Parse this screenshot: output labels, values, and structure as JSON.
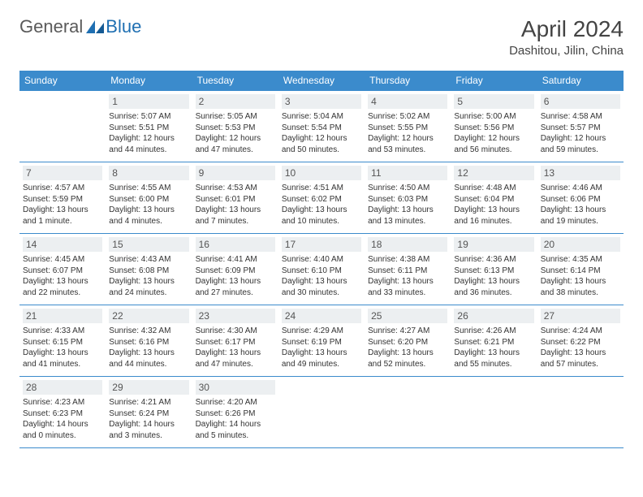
{
  "logo": {
    "general": "General",
    "blue": "Blue"
  },
  "title": "April 2024",
  "location": "Dashitou, Jilin, China",
  "colors": {
    "header_bg": "#3b8bcc",
    "header_text": "#ffffff",
    "daynum_bg": "#eceff1",
    "border": "#3b8bcc",
    "logo_blue": "#1f6fb2",
    "logo_gray": "#5a5a5a"
  },
  "day_headers": [
    "Sunday",
    "Monday",
    "Tuesday",
    "Wednesday",
    "Thursday",
    "Friday",
    "Saturday"
  ],
  "weeks": [
    [
      null,
      {
        "num": "1",
        "sunrise": "Sunrise: 5:07 AM",
        "sunset": "Sunset: 5:51 PM",
        "daylight": "Daylight: 12 hours and 44 minutes."
      },
      {
        "num": "2",
        "sunrise": "Sunrise: 5:05 AM",
        "sunset": "Sunset: 5:53 PM",
        "daylight": "Daylight: 12 hours and 47 minutes."
      },
      {
        "num": "3",
        "sunrise": "Sunrise: 5:04 AM",
        "sunset": "Sunset: 5:54 PM",
        "daylight": "Daylight: 12 hours and 50 minutes."
      },
      {
        "num": "4",
        "sunrise": "Sunrise: 5:02 AM",
        "sunset": "Sunset: 5:55 PM",
        "daylight": "Daylight: 12 hours and 53 minutes."
      },
      {
        "num": "5",
        "sunrise": "Sunrise: 5:00 AM",
        "sunset": "Sunset: 5:56 PM",
        "daylight": "Daylight: 12 hours and 56 minutes."
      },
      {
        "num": "6",
        "sunrise": "Sunrise: 4:58 AM",
        "sunset": "Sunset: 5:57 PM",
        "daylight": "Daylight: 12 hours and 59 minutes."
      }
    ],
    [
      {
        "num": "7",
        "sunrise": "Sunrise: 4:57 AM",
        "sunset": "Sunset: 5:59 PM",
        "daylight": "Daylight: 13 hours and 1 minute."
      },
      {
        "num": "8",
        "sunrise": "Sunrise: 4:55 AM",
        "sunset": "Sunset: 6:00 PM",
        "daylight": "Daylight: 13 hours and 4 minutes."
      },
      {
        "num": "9",
        "sunrise": "Sunrise: 4:53 AM",
        "sunset": "Sunset: 6:01 PM",
        "daylight": "Daylight: 13 hours and 7 minutes."
      },
      {
        "num": "10",
        "sunrise": "Sunrise: 4:51 AM",
        "sunset": "Sunset: 6:02 PM",
        "daylight": "Daylight: 13 hours and 10 minutes."
      },
      {
        "num": "11",
        "sunrise": "Sunrise: 4:50 AM",
        "sunset": "Sunset: 6:03 PM",
        "daylight": "Daylight: 13 hours and 13 minutes."
      },
      {
        "num": "12",
        "sunrise": "Sunrise: 4:48 AM",
        "sunset": "Sunset: 6:04 PM",
        "daylight": "Daylight: 13 hours and 16 minutes."
      },
      {
        "num": "13",
        "sunrise": "Sunrise: 4:46 AM",
        "sunset": "Sunset: 6:06 PM",
        "daylight": "Daylight: 13 hours and 19 minutes."
      }
    ],
    [
      {
        "num": "14",
        "sunrise": "Sunrise: 4:45 AM",
        "sunset": "Sunset: 6:07 PM",
        "daylight": "Daylight: 13 hours and 22 minutes."
      },
      {
        "num": "15",
        "sunrise": "Sunrise: 4:43 AM",
        "sunset": "Sunset: 6:08 PM",
        "daylight": "Daylight: 13 hours and 24 minutes."
      },
      {
        "num": "16",
        "sunrise": "Sunrise: 4:41 AM",
        "sunset": "Sunset: 6:09 PM",
        "daylight": "Daylight: 13 hours and 27 minutes."
      },
      {
        "num": "17",
        "sunrise": "Sunrise: 4:40 AM",
        "sunset": "Sunset: 6:10 PM",
        "daylight": "Daylight: 13 hours and 30 minutes."
      },
      {
        "num": "18",
        "sunrise": "Sunrise: 4:38 AM",
        "sunset": "Sunset: 6:11 PM",
        "daylight": "Daylight: 13 hours and 33 minutes."
      },
      {
        "num": "19",
        "sunrise": "Sunrise: 4:36 AM",
        "sunset": "Sunset: 6:13 PM",
        "daylight": "Daylight: 13 hours and 36 minutes."
      },
      {
        "num": "20",
        "sunrise": "Sunrise: 4:35 AM",
        "sunset": "Sunset: 6:14 PM",
        "daylight": "Daylight: 13 hours and 38 minutes."
      }
    ],
    [
      {
        "num": "21",
        "sunrise": "Sunrise: 4:33 AM",
        "sunset": "Sunset: 6:15 PM",
        "daylight": "Daylight: 13 hours and 41 minutes."
      },
      {
        "num": "22",
        "sunrise": "Sunrise: 4:32 AM",
        "sunset": "Sunset: 6:16 PM",
        "daylight": "Daylight: 13 hours and 44 minutes."
      },
      {
        "num": "23",
        "sunrise": "Sunrise: 4:30 AM",
        "sunset": "Sunset: 6:17 PM",
        "daylight": "Daylight: 13 hours and 47 minutes."
      },
      {
        "num": "24",
        "sunrise": "Sunrise: 4:29 AM",
        "sunset": "Sunset: 6:19 PM",
        "daylight": "Daylight: 13 hours and 49 minutes."
      },
      {
        "num": "25",
        "sunrise": "Sunrise: 4:27 AM",
        "sunset": "Sunset: 6:20 PM",
        "daylight": "Daylight: 13 hours and 52 minutes."
      },
      {
        "num": "26",
        "sunrise": "Sunrise: 4:26 AM",
        "sunset": "Sunset: 6:21 PM",
        "daylight": "Daylight: 13 hours and 55 minutes."
      },
      {
        "num": "27",
        "sunrise": "Sunrise: 4:24 AM",
        "sunset": "Sunset: 6:22 PM",
        "daylight": "Daylight: 13 hours and 57 minutes."
      }
    ],
    [
      {
        "num": "28",
        "sunrise": "Sunrise: 4:23 AM",
        "sunset": "Sunset: 6:23 PM",
        "daylight": "Daylight: 14 hours and 0 minutes."
      },
      {
        "num": "29",
        "sunrise": "Sunrise: 4:21 AM",
        "sunset": "Sunset: 6:24 PM",
        "daylight": "Daylight: 14 hours and 3 minutes."
      },
      {
        "num": "30",
        "sunrise": "Sunrise: 4:20 AM",
        "sunset": "Sunset: 6:26 PM",
        "daylight": "Daylight: 14 hours and 5 minutes."
      },
      null,
      null,
      null,
      null
    ]
  ]
}
